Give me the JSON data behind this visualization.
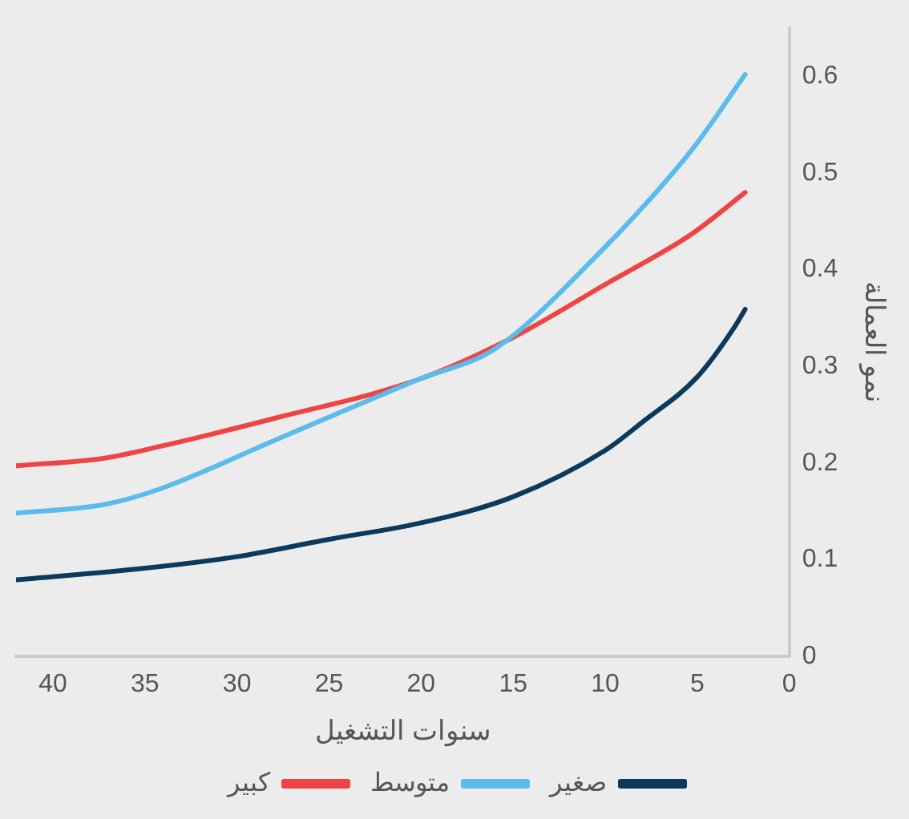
{
  "chart_data": {
    "type": "line",
    "xlabel": "سنوات التشغيل",
    "ylabel": "نمو العمالة",
    "xlim": [
      42,
      0
    ],
    "xticks": [
      40,
      35,
      30,
      25,
      20,
      15,
      10,
      5,
      0
    ],
    "ylim": [
      0,
      0.65
    ],
    "yticks": [
      0,
      0.1,
      0.2,
      0.3,
      0.4,
      0.5,
      0.6
    ],
    "grid": false,
    "legend": "bottom",
    "marker": "none",
    "line_style": "solid",
    "series": [
      {
        "name": "صغير",
        "color": "#0b3a5c",
        "x": [
          42,
          35,
          30,
          25,
          20,
          15,
          10,
          8,
          5,
          3,
          2.4
        ],
        "values": [
          0.079,
          0.091,
          0.103,
          0.121,
          0.138,
          0.165,
          0.213,
          0.242,
          0.289,
          0.34,
          0.359
        ]
      },
      {
        "name": "متوسط",
        "color": "#5bbcec",
        "x": [
          42,
          37.2,
          34.2,
          28,
          20.2,
          16,
          10.8,
          5.3,
          2.4
        ],
        "values": [
          0.148,
          0.157,
          0.173,
          0.223,
          0.286,
          0.318,
          0.408,
          0.524,
          0.602
        ]
      },
      {
        "name": "كبير",
        "color": "#ef4444",
        "x": [
          42,
          37.2,
          34.2,
          28,
          20.2,
          15,
          9.8,
          5.3,
          2.4
        ],
        "values": [
          0.197,
          0.205,
          0.217,
          0.246,
          0.286,
          0.33,
          0.387,
          0.437,
          0.48
        ]
      }
    ]
  }
}
